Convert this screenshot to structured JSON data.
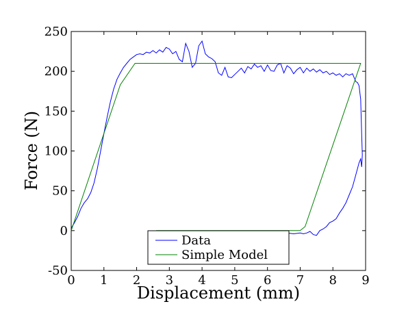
{
  "chart_data": {
    "type": "line",
    "title": "",
    "xlabel": "Displacement (mm)",
    "ylabel": "Force (N)",
    "xlim": [
      0,
      9
    ],
    "ylim": [
      -50,
      250
    ],
    "xticks": [
      0,
      1,
      2,
      3,
      4,
      5,
      6,
      7,
      8,
      9
    ],
    "yticks": [
      -50,
      0,
      50,
      100,
      150,
      200,
      250
    ],
    "xtick_labels": [
      "0",
      "1",
      "2",
      "3",
      "4",
      "5",
      "6",
      "7",
      "8",
      "9"
    ],
    "ytick_labels": [
      "-50",
      "0",
      "50",
      "100",
      "150",
      "200",
      "250"
    ],
    "grid": false,
    "legend_position": "bottom-center",
    "series": [
      {
        "name": "Data",
        "color": "#0000ff",
        "x": [
          0.0,
          0.1,
          0.2,
          0.3,
          0.4,
          0.5,
          0.6,
          0.7,
          0.8,
          0.9,
          1.0,
          1.1,
          1.2,
          1.3,
          1.4,
          1.5,
          1.6,
          1.7,
          1.8,
          1.9,
          2.0,
          2.1,
          2.2,
          2.3,
          2.4,
          2.5,
          2.6,
          2.7,
          2.8,
          2.9,
          3.0,
          3.1,
          3.2,
          3.3,
          3.4,
          3.5,
          3.6,
          3.7,
          3.8,
          3.9,
          4.0,
          4.1,
          4.2,
          4.3,
          4.4,
          4.5,
          4.6,
          4.7,
          4.8,
          4.9,
          5.0,
          5.1,
          5.2,
          5.3,
          5.4,
          5.5,
          5.6,
          5.7,
          5.8,
          5.9,
          6.0,
          6.1,
          6.2,
          6.3,
          6.4,
          6.5,
          6.6,
          6.7,
          6.8,
          6.9,
          7.0,
          7.1,
          7.2,
          7.3,
          7.4,
          7.5,
          7.6,
          7.7,
          7.8,
          7.9,
          8.0,
          8.1,
          8.2,
          8.3,
          8.4,
          8.5,
          8.6,
          8.7,
          8.75,
          8.8,
          8.85,
          8.88,
          8.9,
          8.88,
          8.85,
          8.8,
          8.7,
          8.6,
          8.5,
          8.4,
          8.3,
          8.2,
          8.1,
          8.0,
          7.9,
          7.8,
          7.7,
          7.6,
          7.55,
          7.5,
          7.4,
          7.3,
          7.2,
          7.1,
          7.0,
          6.8,
          6.6,
          6.4,
          6.2,
          6.0
        ],
        "y": [
          3,
          10,
          18,
          28,
          35,
          40,
          48,
          60,
          78,
          100,
          122,
          143,
          162,
          178,
          190,
          198,
          205,
          210,
          215,
          218,
          221,
          222,
          221,
          224,
          223,
          226,
          223,
          227,
          224,
          230,
          228,
          222,
          225,
          215,
          212,
          235,
          225,
          205,
          210,
          232,
          238,
          222,
          218,
          216,
          212,
          198,
          195,
          205,
          193,
          192,
          196,
          200,
          204,
          198,
          206,
          203,
          209,
          205,
          207,
          200,
          208,
          201,
          200,
          208,
          210,
          198,
          207,
          204,
          197,
          202,
          205,
          198,
          204,
          200,
          203,
          199,
          202,
          198,
          200,
          196,
          198,
          195,
          197,
          193,
          197,
          195,
          197,
          187,
          186,
          182,
          165,
          120,
          95,
          80,
          90,
          85,
          70,
          55,
          45,
          35,
          28,
          22,
          15,
          12,
          10,
          5,
          2,
          0,
          -3,
          -6,
          -5,
          -1,
          -3,
          -4,
          -3,
          -4,
          -3,
          -4,
          -3,
          -4
        ]
      },
      {
        "name": "Simple Model",
        "color": "#008000",
        "x": [
          0.0,
          1.5,
          1.95,
          8.85,
          7.15,
          7.0,
          2.6
        ],
        "y": [
          0,
          183,
          210,
          210,
          5,
          0,
          0
        ]
      }
    ]
  }
}
